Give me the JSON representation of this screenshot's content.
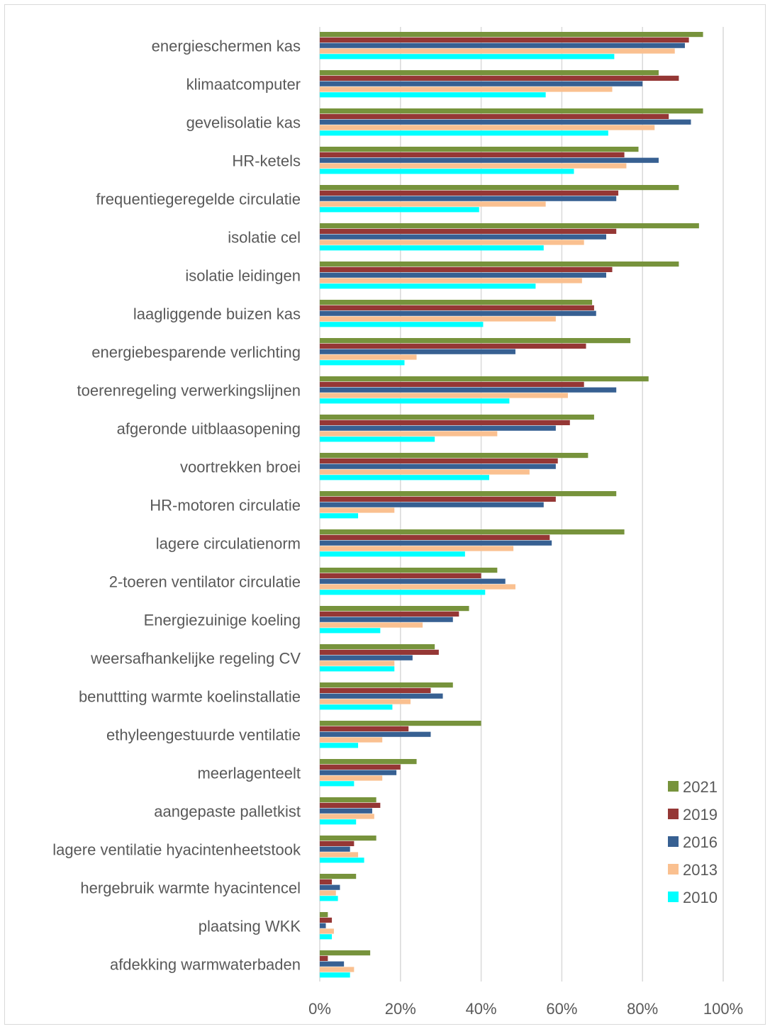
{
  "chart_data": {
    "type": "bar",
    "orientation": "horizontal",
    "title": "",
    "xlabel": "",
    "ylabel": "",
    "xlim": [
      0,
      100
    ],
    "x_ticks": [
      "0%",
      "20%",
      "40%",
      "60%",
      "80%",
      "100%"
    ],
    "x_tick_values": [
      0,
      20,
      40,
      60,
      80,
      100
    ],
    "grid": true,
    "legend_position": "bottom-right",
    "categories": [
      "energieschermen kas",
      "klimaatcomputer",
      "gevelisolatie kas",
      "HR-ketels",
      "frequentiegeregelde circulatie",
      "isolatie cel",
      "isolatie leidingen",
      "laagliggende buizen kas",
      "energiebesparende verlichting",
      "toerenregeling verwerkingslijnen",
      "afgeronde uitblaasopening",
      "voortrekken broei",
      "HR-motoren circulatie",
      "lagere circulatienorm",
      "2-toeren ventilator circulatie",
      "Energiezuinige koeling",
      "weersafhankelijke regeling CV",
      "benuttting warmte koelinstallatie",
      "ethyleengestuurde ventilatie",
      "meerlagenteelt",
      "aangepaste palletkist",
      "lagere ventilatie hyacintenheetstook",
      "hergebruik warmte hyacintencel",
      "plaatsing WKK",
      "afdekking warmwaterbaden"
    ],
    "series": [
      {
        "name": "2021",
        "color": "#77933c",
        "values": [
          95,
          84,
          95,
          79,
          89,
          94,
          89,
          67.5,
          77,
          81.5,
          68,
          66.5,
          73.5,
          75.5,
          44,
          37,
          28.5,
          33,
          40,
          24,
          14,
          14,
          9,
          2,
          12.5
        ]
      },
      {
        "name": "2019",
        "color": "#953735",
        "values": [
          91.5,
          89,
          86.5,
          75.5,
          74,
          73.5,
          72.5,
          68,
          66,
          65.5,
          62,
          59,
          58.5,
          57,
          40,
          34.5,
          29.5,
          27.5,
          22,
          20,
          15,
          8.5,
          3,
          3,
          2
        ]
      },
      {
        "name": "2016",
        "color": "#376092",
        "values": [
          90.5,
          80,
          92,
          84,
          73.5,
          71,
          71,
          68.5,
          48.5,
          73.5,
          58.5,
          58.5,
          55.5,
          57.5,
          46,
          33,
          23,
          30.5,
          27.5,
          19,
          13,
          7.5,
          5,
          1.5,
          6
        ]
      },
      {
        "name": "2013",
        "color": "#fac090",
        "values": [
          88,
          72.5,
          83,
          76,
          56,
          65.5,
          65,
          58.5,
          24,
          61.5,
          44,
          52,
          18.5,
          48,
          48.5,
          25.5,
          18.5,
          22.5,
          15.5,
          15.5,
          13.5,
          9.5,
          4,
          3.5,
          8.5
        ]
      },
      {
        "name": "2010",
        "color": "#00ffff",
        "values": [
          73,
          56,
          71.5,
          63,
          39.5,
          55.5,
          53.5,
          40.5,
          21,
          47,
          28.5,
          42,
          9.5,
          36,
          41,
          15,
          18.5,
          18,
          9.5,
          8.5,
          9,
          11,
          4.5,
          3,
          7.5
        ]
      }
    ],
    "legend_order": [
      "2021",
      "2019",
      "2016",
      "2013",
      "2010"
    ]
  }
}
